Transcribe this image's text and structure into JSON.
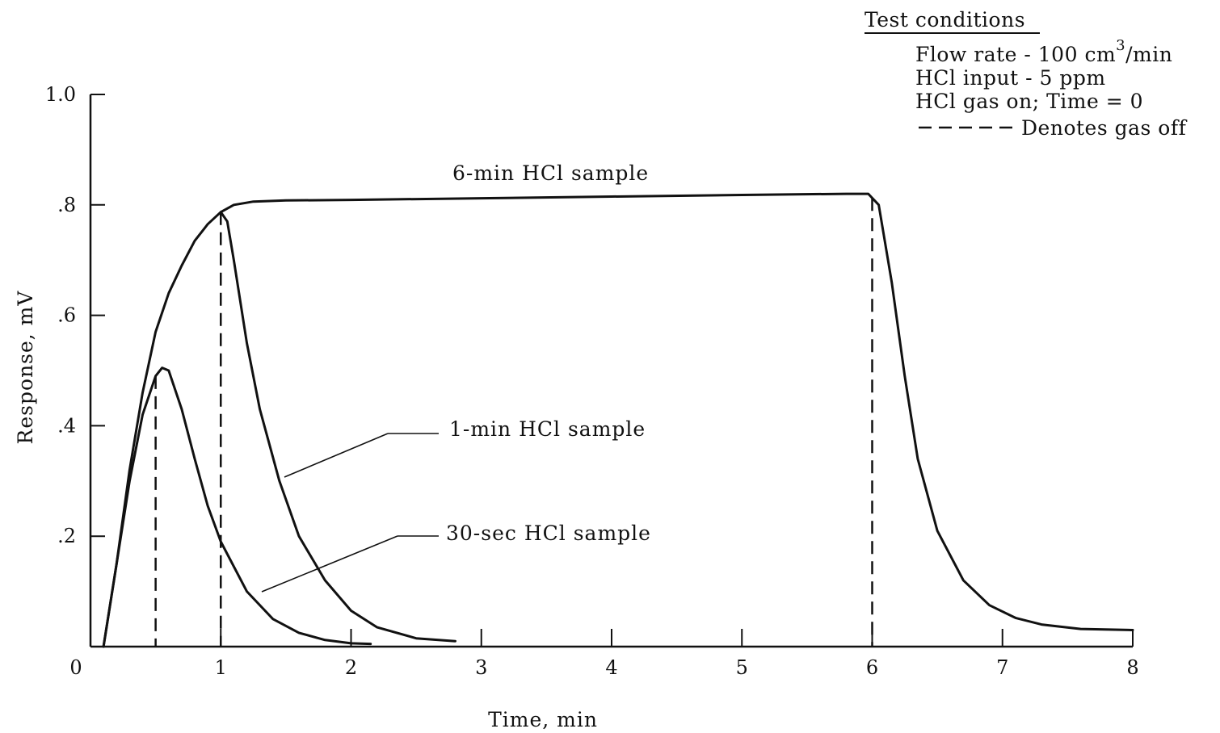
{
  "chart_data": {
    "type": "line",
    "xlabel": "Time, min",
    "ylabel": "Response, mV",
    "xlim": [
      0,
      8
    ],
    "ylim": [
      0,
      1.0
    ],
    "x_ticks": [
      0,
      1,
      2,
      3,
      4,
      5,
      6,
      7,
      8
    ],
    "x_tick_labels": [
      "0",
      "1",
      "2",
      "3",
      "4",
      "5",
      "6",
      "7",
      "8"
    ],
    "y_ticks": [
      0.2,
      0.4,
      0.6,
      0.8,
      1.0
    ],
    "y_tick_labels": [
      ".2",
      ".4",
      ".6",
      ".8",
      "1.0"
    ],
    "grid": false,
    "legend": {
      "title": "Test conditions",
      "lines": [
        {
          "text": "Flow rate - 100 cm",
          "superscript": "3",
          "suffix": "/min"
        },
        {
          "text": "HCl input - 5 ppm"
        },
        {
          "text": "HCl gas on; Time = 0"
        },
        {
          "text": "Denotes gas off",
          "line_style": "dashed"
        }
      ],
      "placement": "top-right"
    },
    "series": [
      {
        "name": "6-min HCl sample",
        "gas_off_time": 6.0,
        "points": [
          [
            0.1,
            0
          ],
          [
            0.2,
            0.15
          ],
          [
            0.3,
            0.32
          ],
          [
            0.4,
            0.46
          ],
          [
            0.5,
            0.57
          ],
          [
            0.6,
            0.64
          ],
          [
            0.7,
            0.69
          ],
          [
            0.8,
            0.735
          ],
          [
            0.9,
            0.765
          ],
          [
            1.0,
            0.787
          ],
          [
            1.1,
            0.8
          ],
          [
            1.25,
            0.806
          ],
          [
            1.5,
            0.808
          ],
          [
            2,
            0.809
          ],
          [
            3,
            0.812
          ],
          [
            4,
            0.815
          ],
          [
            5,
            0.818
          ],
          [
            5.8,
            0.82
          ],
          [
            5.97,
            0.82
          ],
          [
            6.05,
            0.8
          ],
          [
            6.15,
            0.66
          ],
          [
            6.25,
            0.49
          ],
          [
            6.35,
            0.34
          ],
          [
            6.5,
            0.21
          ],
          [
            6.7,
            0.12
          ],
          [
            6.9,
            0.075
          ],
          [
            7.1,
            0.052
          ],
          [
            7.3,
            0.04
          ],
          [
            7.6,
            0.032
          ],
          [
            8,
            0.03
          ]
        ]
      },
      {
        "name": "1-min HCl sample",
        "gas_off_time": 1.0,
        "points": [
          [
            1.0,
            0.787
          ],
          [
            1.05,
            0.77
          ],
          [
            1.1,
            0.7
          ],
          [
            1.2,
            0.55
          ],
          [
            1.3,
            0.43
          ],
          [
            1.45,
            0.3
          ],
          [
            1.6,
            0.2
          ],
          [
            1.8,
            0.12
          ],
          [
            2.0,
            0.065
          ],
          [
            2.2,
            0.035
          ],
          [
            2.5,
            0.015
          ],
          [
            2.8,
            0.01
          ]
        ]
      },
      {
        "name": "30-sec HCl sample",
        "gas_off_time": 0.5,
        "points": [
          [
            0.1,
            0
          ],
          [
            0.2,
            0.15
          ],
          [
            0.3,
            0.3
          ],
          [
            0.4,
            0.42
          ],
          [
            0.5,
            0.49
          ],
          [
            0.55,
            0.505
          ],
          [
            0.6,
            0.5
          ],
          [
            0.7,
            0.43
          ],
          [
            0.8,
            0.34
          ],
          [
            0.9,
            0.255
          ],
          [
            1.0,
            0.19
          ],
          [
            1.2,
            0.1
          ],
          [
            1.4,
            0.05
          ],
          [
            1.6,
            0.025
          ],
          [
            1.8,
            0.012
          ],
          [
            2.0,
            0.006
          ],
          [
            2.15,
            0.005
          ]
        ]
      }
    ],
    "annotations": [
      {
        "text": "6-min HCl sample"
      },
      {
        "text": "1-min HCl sample"
      },
      {
        "text": "30-sec HCl sample"
      }
    ]
  }
}
